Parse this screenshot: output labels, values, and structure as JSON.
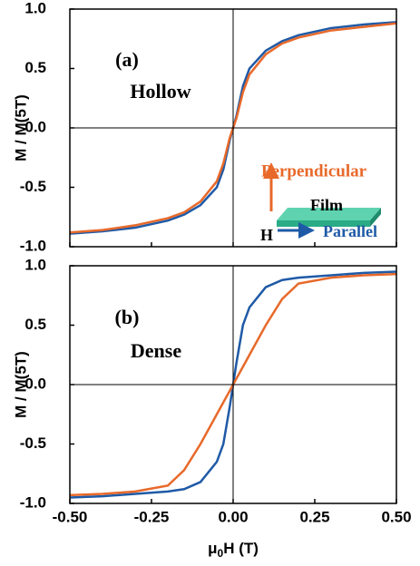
{
  "chart_data": [
    {
      "type": "line",
      "ylabel": "M / M(5T)",
      "annotations": [
        "(a)",
        "Hollow"
      ],
      "inset": {
        "film": "Film",
        "field": "H"
      },
      "x": [
        -0.5,
        -0.4,
        -0.3,
        -0.2,
        -0.15,
        -0.1,
        -0.05,
        -0.03,
        -0.01,
        0,
        0.01,
        0.03,
        0.05,
        0.1,
        0.15,
        0.2,
        0.3,
        0.4,
        0.5
      ],
      "series": [
        {
          "name": "Perpendicular",
          "color": "#e8692a",
          "values": [
            -0.88,
            -0.86,
            -0.82,
            -0.76,
            -0.71,
            -0.62,
            -0.45,
            -0.3,
            -0.08,
            0,
            0.08,
            0.3,
            0.45,
            0.62,
            0.71,
            0.76,
            0.82,
            0.85,
            0.88
          ]
        },
        {
          "name": "Parallel",
          "color": "#1f5aa6",
          "values": [
            -0.89,
            -0.87,
            -0.84,
            -0.78,
            -0.73,
            -0.65,
            -0.5,
            -0.35,
            -0.1,
            0,
            0.1,
            0.35,
            0.5,
            0.65,
            0.73,
            0.78,
            0.84,
            0.87,
            0.89
          ]
        }
      ],
      "xlim": [
        -0.5,
        0.5
      ],
      "ylim": [
        -1,
        1
      ],
      "yticks": [
        {
          "value": -1,
          "label": "-1.0"
        },
        -0.5,
        {
          "value": 0,
          "label": "0.0"
        },
        0.5,
        {
          "value": 1,
          "label": "1.0"
        }
      ]
    },
    {
      "type": "line",
      "ylabel": "M / M(5T)",
      "xlabel": [
        "μ",
        "0",
        "H (T)"
      ],
      "annotations": [
        "(b)",
        "Dense"
      ],
      "x": [
        -0.5,
        -0.4,
        -0.3,
        -0.2,
        -0.15,
        -0.1,
        -0.05,
        -0.03,
        -0.01,
        0,
        0.01,
        0.03,
        0.05,
        0.1,
        0.15,
        0.2,
        0.3,
        0.4,
        0.5
      ],
      "series": [
        {
          "color": "#e8692a",
          "values": [
            -0.93,
            -0.92,
            -0.9,
            -0.85,
            -0.72,
            -0.5,
            -0.25,
            -0.15,
            -0.05,
            0,
            0.05,
            0.15,
            0.25,
            0.5,
            0.72,
            0.85,
            0.9,
            0.92,
            0.93
          ]
        },
        {
          "color": "#1f5aa6",
          "values": [
            -0.95,
            -0.94,
            -0.92,
            -0.9,
            -0.88,
            -0.82,
            -0.65,
            -0.5,
            -0.18,
            0,
            0.18,
            0.5,
            0.65,
            0.82,
            0.88,
            0.9,
            0.92,
            0.94,
            0.95
          ]
        }
      ],
      "xlim": [
        -0.5,
        0.5
      ],
      "xticks": [
        {
          "value": -0.5,
          "label": "-0.50"
        },
        {
          "value": -0.25,
          "label": "-0.25"
        },
        {
          "value": 0,
          "label": "0.00"
        },
        {
          "value": 0.25,
          "label": "0.25"
        },
        {
          "value": 0.5,
          "label": "0.50"
        }
      ],
      "ylim": [
        -1,
        1
      ],
      "yticks": [
        {
          "value": -1,
          "label": "-1.0"
        },
        -0.5,
        {
          "value": 0,
          "label": "0.0"
        },
        0.5,
        {
          "value": 1,
          "label": "1.0"
        }
      ]
    }
  ]
}
